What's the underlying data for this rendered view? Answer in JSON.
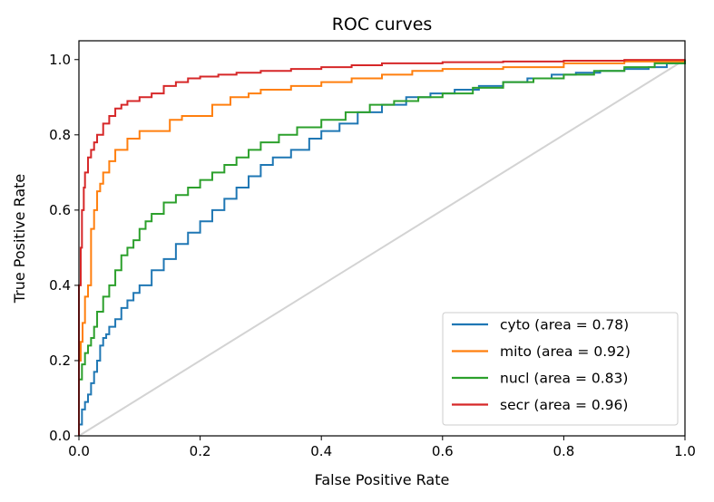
{
  "chart_data": {
    "type": "line",
    "title": "ROC curves",
    "xlabel": "False Positive Rate",
    "ylabel": "True Positive Rate",
    "xlim": [
      0.0,
      1.0
    ],
    "ylim": [
      0.0,
      1.05
    ],
    "xticks": [
      0.0,
      0.2,
      0.4,
      0.6,
      0.8,
      1.0
    ],
    "yticks": [
      0.0,
      0.2,
      0.4,
      0.6,
      0.8,
      1.0
    ],
    "xtick_labels": [
      "0.0",
      "0.2",
      "0.4",
      "0.6",
      "0.8",
      "1.0"
    ],
    "ytick_labels": [
      "0.0",
      "0.2",
      "0.4",
      "0.6",
      "0.8",
      "1.0"
    ],
    "grid": false,
    "legend_position": "lower-right",
    "baseline": {
      "color": "#d3d3d3",
      "x": [
        0.0,
        1.0
      ],
      "y": [
        0.0,
        1.0
      ]
    },
    "series": [
      {
        "name": "cyto (area = 0.78)",
        "color": "#1f77b4",
        "x": [
          0.0,
          0.0,
          0.005,
          0.005,
          0.01,
          0.015,
          0.02,
          0.025,
          0.03,
          0.035,
          0.04,
          0.045,
          0.05,
          0.06,
          0.07,
          0.08,
          0.09,
          0.1,
          0.12,
          0.14,
          0.16,
          0.18,
          0.2,
          0.22,
          0.24,
          0.26,
          0.28,
          0.3,
          0.32,
          0.35,
          0.38,
          0.4,
          0.43,
          0.46,
          0.5,
          0.54,
          0.58,
          0.62,
          0.66,
          0.7,
          0.74,
          0.78,
          0.82,
          0.86,
          0.9,
          0.94,
          0.97,
          1.0
        ],
        "y": [
          0.0,
          0.03,
          0.05,
          0.07,
          0.09,
          0.11,
          0.14,
          0.17,
          0.2,
          0.24,
          0.26,
          0.27,
          0.29,
          0.31,
          0.34,
          0.36,
          0.38,
          0.4,
          0.44,
          0.47,
          0.51,
          0.54,
          0.57,
          0.6,
          0.63,
          0.66,
          0.69,
          0.72,
          0.74,
          0.76,
          0.79,
          0.81,
          0.83,
          0.86,
          0.88,
          0.9,
          0.91,
          0.92,
          0.93,
          0.94,
          0.95,
          0.96,
          0.965,
          0.97,
          0.975,
          0.98,
          0.99,
          1.0
        ]
      },
      {
        "name": "mito (area = 0.92)",
        "color": "#ff7f0e",
        "x": [
          0.0,
          0.0,
          0.003,
          0.006,
          0.01,
          0.015,
          0.02,
          0.025,
          0.03,
          0.035,
          0.04,
          0.05,
          0.06,
          0.08,
          0.1,
          0.13,
          0.15,
          0.17,
          0.2,
          0.22,
          0.25,
          0.28,
          0.3,
          0.35,
          0.4,
          0.45,
          0.5,
          0.55,
          0.6,
          0.7,
          0.8,
          0.9,
          1.0
        ],
        "y": [
          0.0,
          0.2,
          0.25,
          0.3,
          0.37,
          0.4,
          0.55,
          0.6,
          0.65,
          0.67,
          0.7,
          0.73,
          0.76,
          0.79,
          0.81,
          0.81,
          0.84,
          0.85,
          0.85,
          0.88,
          0.9,
          0.91,
          0.92,
          0.93,
          0.94,
          0.95,
          0.96,
          0.97,
          0.975,
          0.98,
          0.99,
          0.995,
          1.0
        ]
      },
      {
        "name": "nucl (area = 0.83)",
        "color": "#2ca02c",
        "x": [
          0.0,
          0.0,
          0.005,
          0.01,
          0.015,
          0.02,
          0.025,
          0.03,
          0.04,
          0.05,
          0.06,
          0.07,
          0.08,
          0.09,
          0.1,
          0.11,
          0.12,
          0.14,
          0.16,
          0.18,
          0.2,
          0.22,
          0.24,
          0.26,
          0.28,
          0.3,
          0.33,
          0.36,
          0.4,
          0.44,
          0.48,
          0.52,
          0.56,
          0.6,
          0.65,
          0.7,
          0.75,
          0.8,
          0.85,
          0.9,
          0.95,
          1.0
        ],
        "y": [
          0.0,
          0.15,
          0.19,
          0.22,
          0.24,
          0.26,
          0.29,
          0.33,
          0.37,
          0.4,
          0.44,
          0.48,
          0.5,
          0.52,
          0.55,
          0.57,
          0.59,
          0.62,
          0.64,
          0.66,
          0.68,
          0.7,
          0.72,
          0.74,
          0.76,
          0.78,
          0.8,
          0.82,
          0.84,
          0.86,
          0.88,
          0.89,
          0.9,
          0.91,
          0.925,
          0.94,
          0.95,
          0.96,
          0.97,
          0.98,
          0.99,
          1.0
        ]
      },
      {
        "name": "secr (area = 0.96)",
        "color": "#d62728",
        "x": [
          0.0,
          0.0,
          0.003,
          0.005,
          0.008,
          0.01,
          0.015,
          0.02,
          0.025,
          0.03,
          0.04,
          0.05,
          0.06,
          0.07,
          0.08,
          0.1,
          0.12,
          0.14,
          0.16,
          0.18,
          0.2,
          0.23,
          0.26,
          0.3,
          0.35,
          0.4,
          0.45,
          0.5,
          0.6,
          0.7,
          0.8,
          0.9,
          1.0
        ],
        "y": [
          0.0,
          0.4,
          0.5,
          0.6,
          0.66,
          0.7,
          0.74,
          0.76,
          0.78,
          0.8,
          0.83,
          0.85,
          0.87,
          0.88,
          0.89,
          0.9,
          0.91,
          0.93,
          0.94,
          0.95,
          0.955,
          0.96,
          0.965,
          0.97,
          0.975,
          0.98,
          0.985,
          0.99,
          0.993,
          0.995,
          0.997,
          0.999,
          1.0
        ]
      }
    ]
  }
}
